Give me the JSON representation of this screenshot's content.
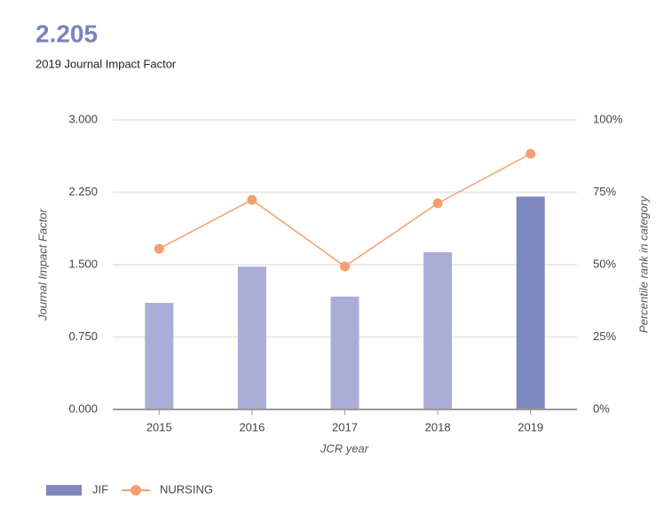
{
  "chart_data": {
    "type": "bar_line",
    "headline": "2.205",
    "title": "2019 Journal Impact Factor",
    "x_label": "JCR year",
    "y_label": "Journal Impact Factor",
    "y2_label": "Percentile rank in category",
    "categories": [
      "2015",
      "2016",
      "2017",
      "2018",
      "2019"
    ],
    "series": [
      {
        "name": "JIF",
        "type": "bar",
        "color": "#7f87bf",
        "bar_colors": [
          "#aaaed6",
          "#aaaed6",
          "#aaaed6",
          "#aaaed6",
          "#7f87bf"
        ],
        "values": [
          1.104,
          1.48,
          1.169,
          1.629,
          2.205
        ]
      },
      {
        "name": "NURSING",
        "type": "line",
        "axis": "y2",
        "color": "#f4a06e",
        "values": [
          55.5,
          72.4,
          49.4,
          71.2,
          88.3
        ]
      }
    ],
    "ylim": [
      0,
      3
    ],
    "yticks": [
      {
        "value": 0,
        "label": "0.000"
      },
      {
        "value": 0.75,
        "label": "0.750"
      },
      {
        "value": 1.5,
        "label": "1.500"
      },
      {
        "value": 2.25,
        "label": "2.250"
      },
      {
        "value": 3,
        "label": "3.000"
      }
    ],
    "y2lim": [
      0,
      100
    ],
    "y2ticks": [
      {
        "value": 0,
        "label": "0%"
      },
      {
        "value": 25,
        "label": "25%"
      },
      {
        "value": 50,
        "label": "50%"
      },
      {
        "value": 75,
        "label": "75%"
      },
      {
        "value": 100,
        "label": "100%"
      }
    ],
    "grid": true,
    "legend": "bottom-left"
  }
}
